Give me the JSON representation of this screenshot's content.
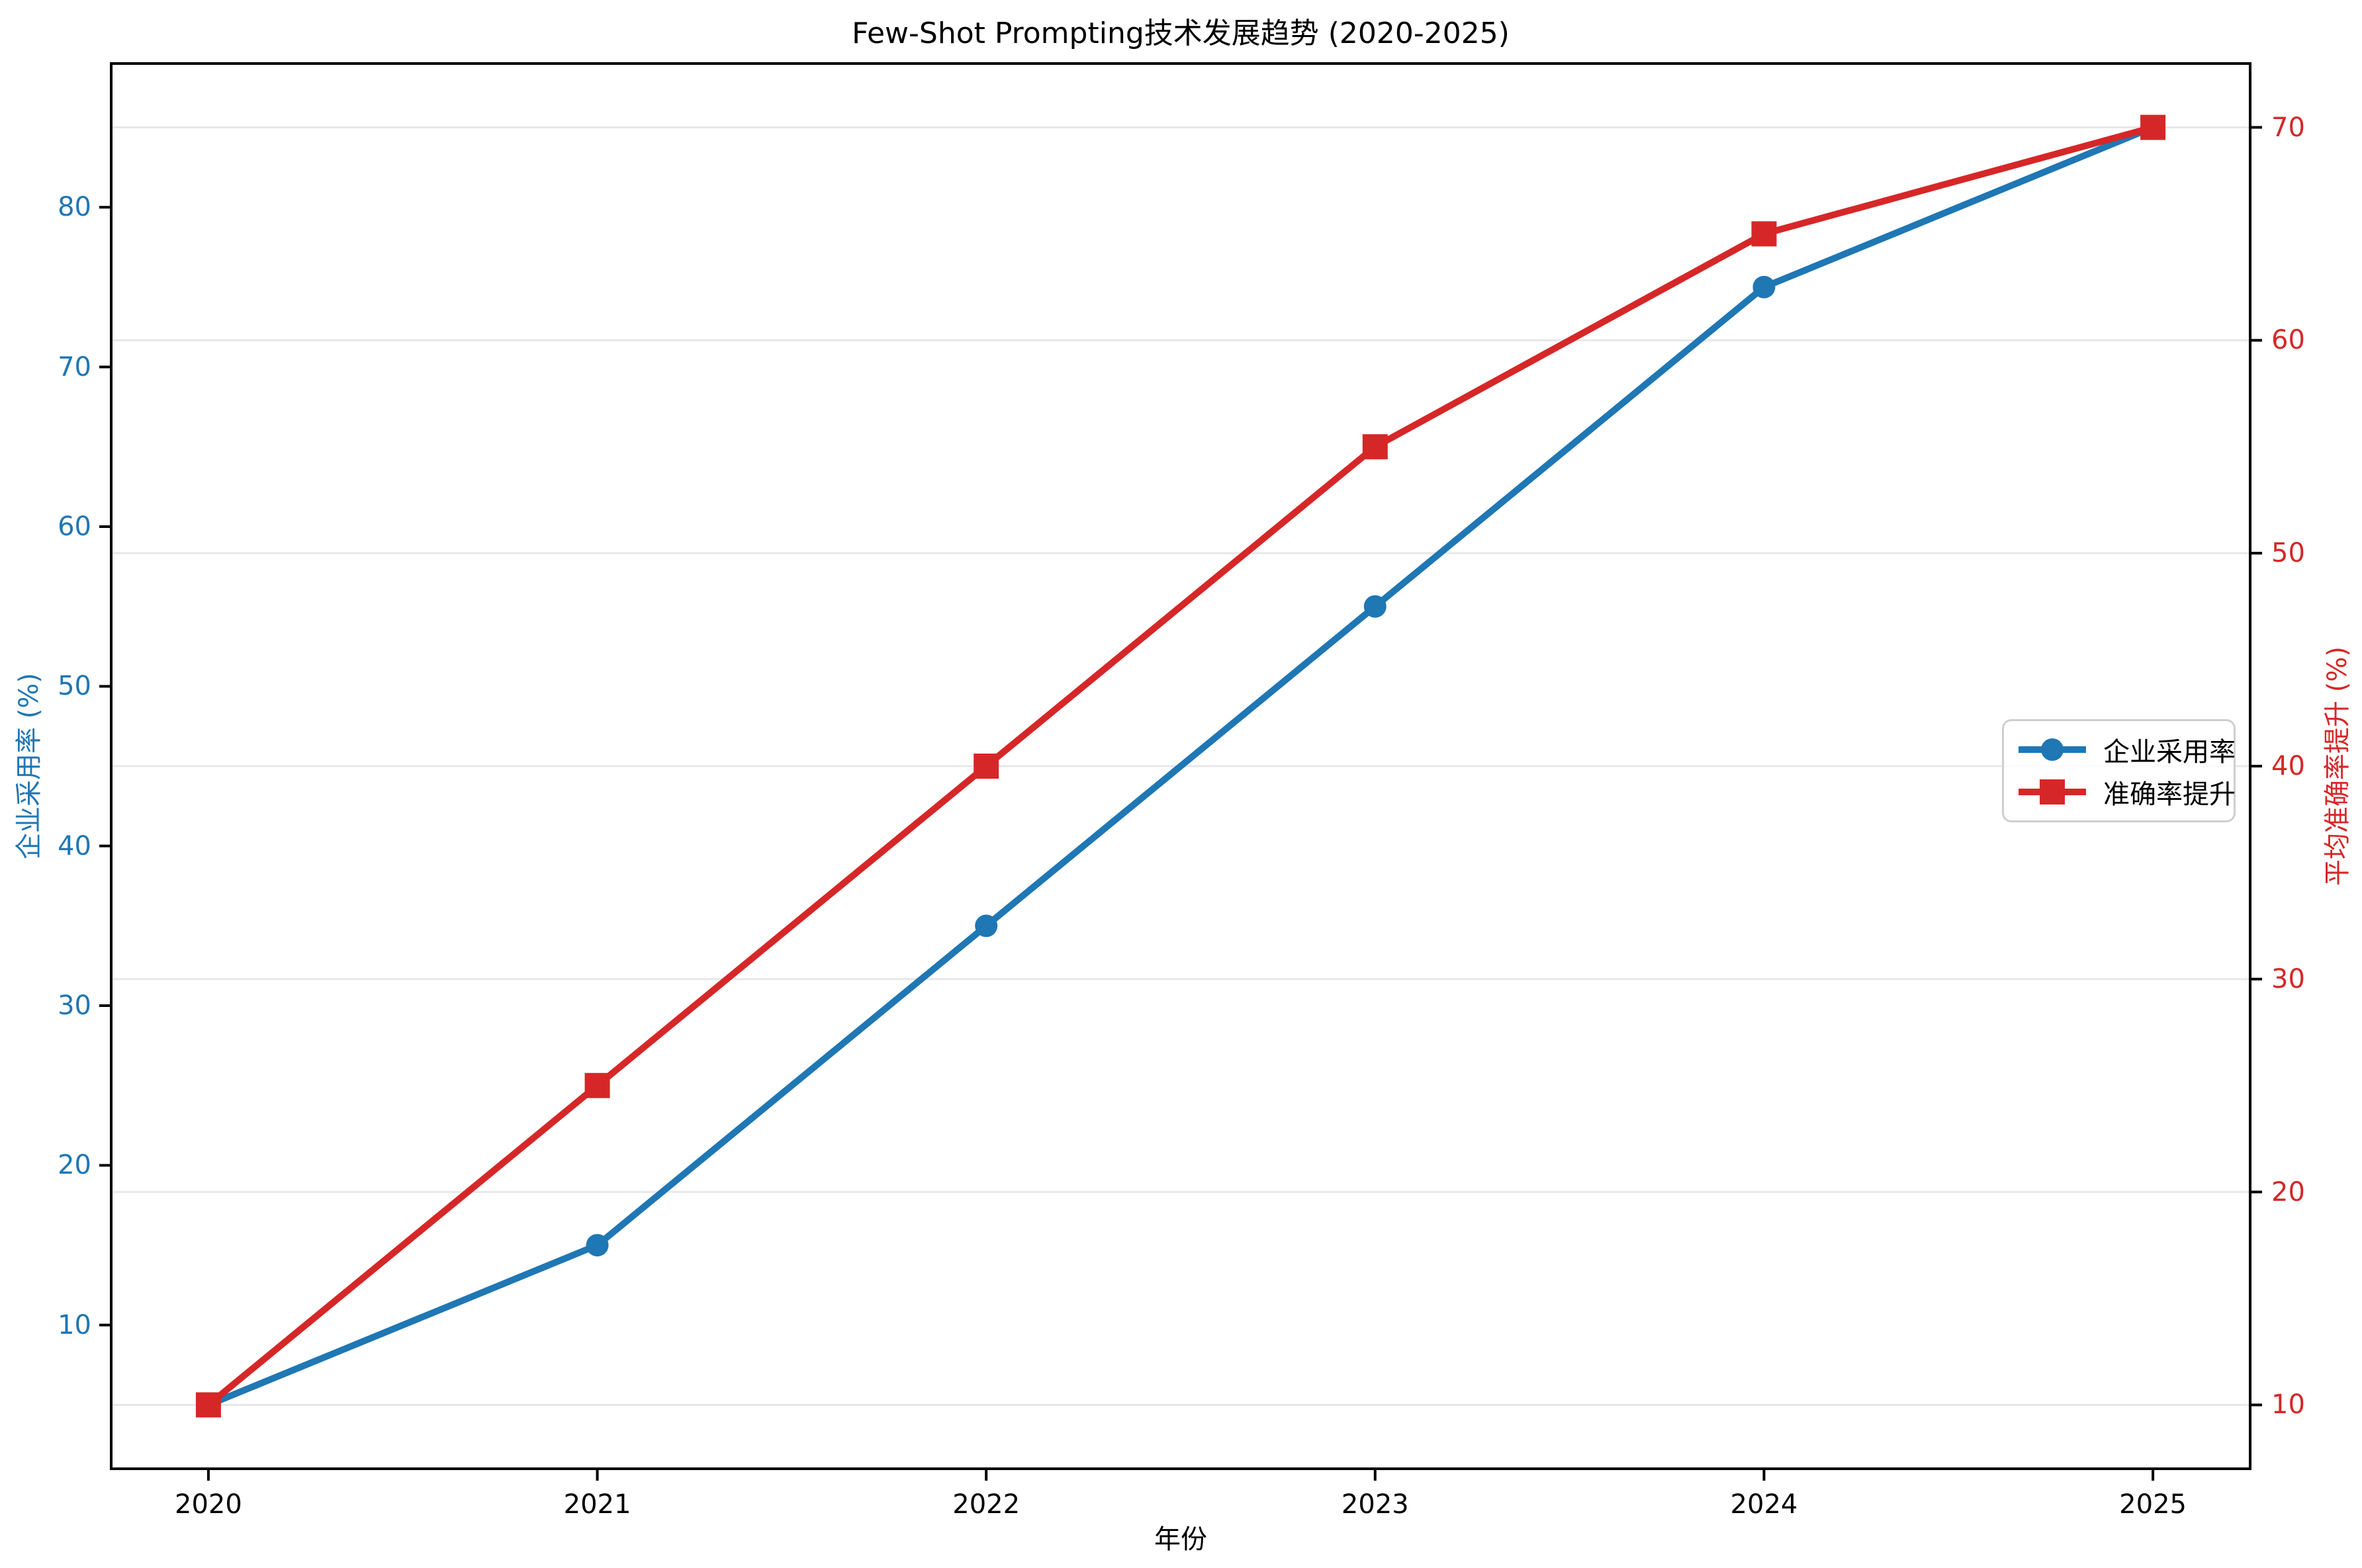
{
  "chart_data": {
    "type": "line",
    "title": "Few-Shot Prompting技术发展趋势 (2020-2025)",
    "xlabel": "年份",
    "x": [
      2020,
      2021,
      2022,
      2023,
      2024,
      2025
    ],
    "series": [
      {
        "name": "企业采用率",
        "axis": "left",
        "color": "#1f77b4",
        "marker": "circle",
        "values": [
          5,
          15,
          35,
          55,
          75,
          85
        ]
      },
      {
        "name": "准确率提升",
        "axis": "right",
        "color": "#d62728",
        "marker": "square",
        "values": [
          10,
          25,
          40,
          55,
          65,
          70
        ]
      }
    ],
    "x_axis": {
      "label": "年份",
      "tick_labels": [
        "2020",
        "2021",
        "2022",
        "2023",
        "2024",
        "2025"
      ],
      "range": [
        -0.25,
        5.25
      ],
      "color": "#000000"
    },
    "left_axis": {
      "label": "企业采用率 (%)",
      "color": "#1f77b4",
      "ticks": [
        10,
        20,
        30,
        40,
        50,
        60,
        70,
        80
      ],
      "range": [
        1,
        89
      ]
    },
    "right_axis": {
      "label": "平均准确率提升 (%)",
      "color": "#d62728",
      "ticks": [
        10,
        20,
        30,
        40,
        50,
        60,
        70
      ],
      "range": [
        7,
        73
      ]
    },
    "grid": {
      "on": true,
      "follows_axis": "right",
      "color": "#e8e8e8"
    },
    "legend": {
      "position": "center right",
      "entries": [
        "企业采用率",
        "准确率提升"
      ]
    },
    "frame_color": "#000000",
    "background": "#ffffff"
  }
}
